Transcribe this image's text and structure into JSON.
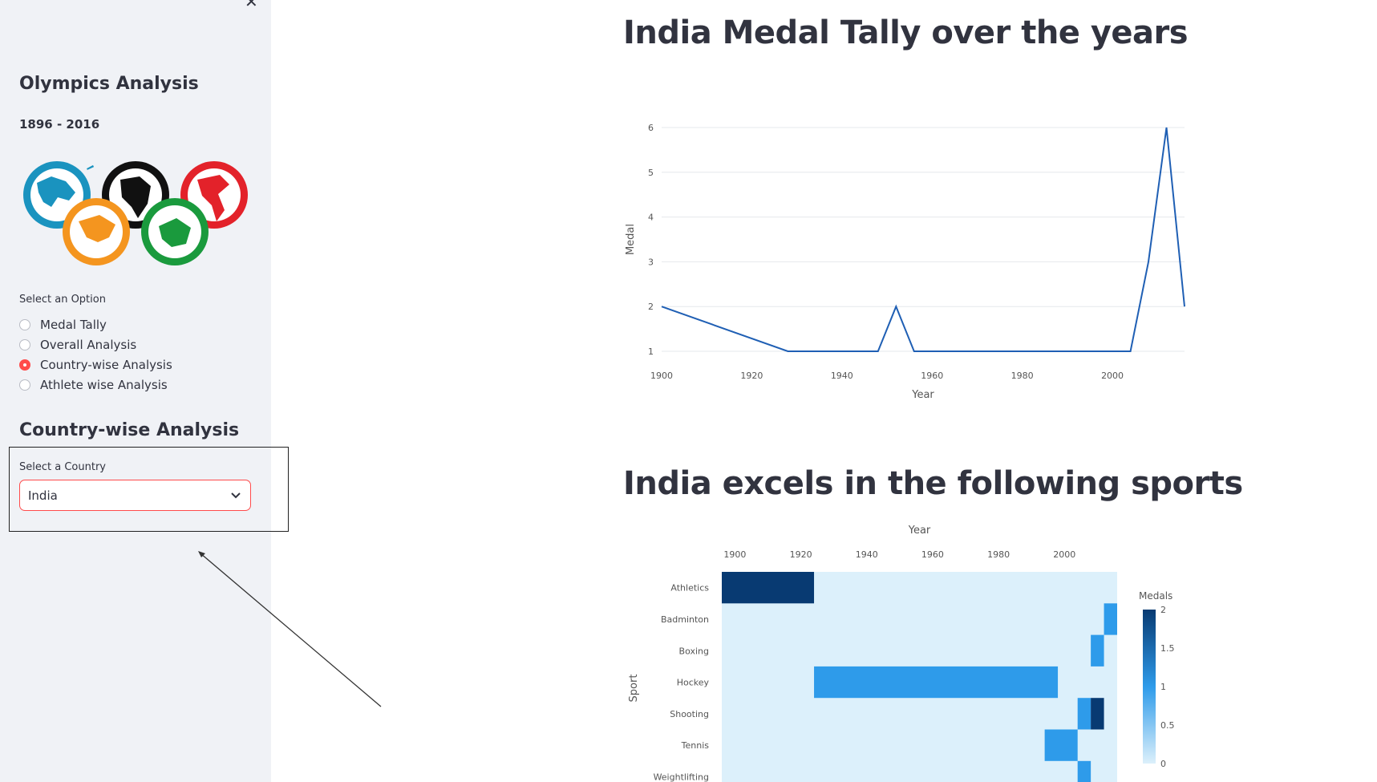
{
  "sidebar": {
    "close_glyph": "✕",
    "title": "Olympics Analysis",
    "years": "1896 - 2016",
    "option_label": "Select an Option",
    "options": [
      {
        "label": "Medal Tally",
        "selected": false
      },
      {
        "label": "Overall Analysis",
        "selected": false
      },
      {
        "label": "Country-wise Analysis",
        "selected": true
      },
      {
        "label": "Athlete wise Analysis",
        "selected": false
      }
    ],
    "section_title": "Country-wise Analysis",
    "country_label": "Select a Country",
    "country_value": "India",
    "accent_color": "#ff4b4b"
  },
  "main": {
    "title1": "India Medal Tally over the years",
    "title2": "India excels in the following sports"
  },
  "chart_data": [
    {
      "type": "line",
      "x": [
        1900,
        1928,
        1932,
        1936,
        1948,
        1952,
        1956,
        1960,
        1964,
        1968,
        1972,
        1980,
        1984,
        1988,
        1992,
        1996,
        2000,
        2004,
        2008,
        2012,
        2016
      ],
      "y": [
        2,
        1,
        1,
        1,
        1,
        2,
        1,
        1,
        1,
        1,
        1,
        1,
        1,
        1,
        1,
        1,
        1,
        1,
        3,
        6,
        2
      ],
      "xlabel": "Year",
      "ylabel": "Medal",
      "xticks": [
        1900,
        1920,
        1940,
        1960,
        1980,
        2000
      ],
      "yticks": [
        1,
        2,
        3,
        4,
        5,
        6
      ],
      "xlim": [
        1900,
        2016
      ],
      "ylim": [
        1,
        6
      ],
      "line_color": "#1f5fb4",
      "grid": true
    },
    {
      "type": "heatmap",
      "xlabel": "Year",
      "ylabel": "Sport",
      "xticks": [
        1900,
        1920,
        1940,
        1960,
        1980,
        2000
      ],
      "xlim": [
        1896,
        2016
      ],
      "sports": [
        "Athletics",
        "Badminton",
        "Boxing",
        "Hockey",
        "Shooting",
        "Tennis",
        "Weightlifting"
      ],
      "cells": [
        {
          "sport": "Athletics",
          "from": 1896,
          "to": 1924,
          "value": 2
        },
        {
          "sport": "Badminton",
          "from": 2012,
          "to": 2016,
          "value": 1
        },
        {
          "sport": "Boxing",
          "from": 2008,
          "to": 2012,
          "value": 1
        },
        {
          "sport": "Hockey",
          "from": 1924,
          "to": 1998,
          "value": 1
        },
        {
          "sport": "Shooting",
          "from": 2004,
          "to": 2008,
          "value": 1
        },
        {
          "sport": "Shooting",
          "from": 2008,
          "to": 2012,
          "value": 2
        },
        {
          "sport": "Tennis",
          "from": 1994,
          "to": 2004,
          "value": 1
        },
        {
          "sport": "Weightlifting",
          "from": 2004,
          "to": 2008,
          "value": 1
        }
      ],
      "colorbar_title": "Medals",
      "colorbar_ticks": [
        "2",
        "1.5",
        "1",
        "0.5",
        "0"
      ],
      "colors": {
        "zero": "#dcf0fb",
        "one": "#2e9bea",
        "two": "#083a72"
      }
    }
  ]
}
